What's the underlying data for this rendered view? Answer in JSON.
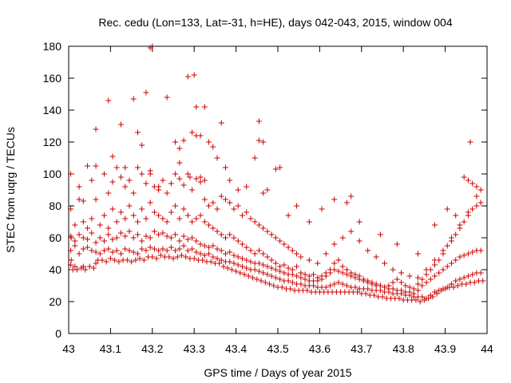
{
  "chart_data": {
    "type": "scatter",
    "title": "Rec. cedu (Lon=133, Lat=-31, h=HE), days 042-043, 2015, window 004",
    "xlabel": "GPS time / Days of year 2015",
    "ylabel": "STEC from uqrg / TECUs",
    "xlim": [
      43,
      44
    ],
    "ylim": [
      0,
      180
    ],
    "xticks": [
      "43",
      "43.1",
      "43.2",
      "43.3",
      "43.4",
      "43.5",
      "43.6",
      "43.7",
      "43.8",
      "43.9",
      "44"
    ],
    "yticks": [
      "0",
      "20",
      "40",
      "60",
      "80",
      "100",
      "120",
      "140",
      "160",
      "180"
    ],
    "grid": false,
    "legend": "none",
    "marker": "plus",
    "marker_color": "#cc0000",
    "series": [
      {
        "x": [
          43.005,
          43.006,
          43.006,
          43.01,
          43.015,
          43.02,
          43.03,
          43.035,
          43.04,
          43.05,
          43.06,
          43.065,
          43.07,
          43.08,
          43.09,
          43.1,
          43.11,
          43.12,
          43.13,
          43.14,
          43.15,
          43.16,
          43.17,
          43.18,
          43.19,
          43.2,
          43.21,
          43.22,
          43.23,
          43.24,
          43.25,
          43.26,
          43.27,
          43.28,
          43.29,
          43.3,
          43.31,
          43.32,
          43.33,
          43.34,
          43.35,
          43.36,
          43.37,
          43.38,
          43.39,
          43.4,
          43.41,
          43.42,
          43.43,
          43.44,
          43.45,
          43.46,
          43.47,
          43.48,
          43.49,
          43.5,
          43.51,
          43.52,
          43.53,
          43.54,
          43.55,
          43.56,
          43.57,
          43.58,
          43.59,
          43.6,
          43.61,
          43.62,
          43.63,
          43.64,
          43.65,
          43.66,
          43.67,
          43.68,
          43.69,
          43.7,
          43.71,
          43.72,
          43.73,
          43.74,
          43.75,
          43.76,
          43.77,
          43.78,
          43.79,
          43.8,
          43.81,
          43.82,
          43.83,
          43.84,
          43.85,
          43.86,
          43.87,
          43.88,
          43.89,
          43.9,
          43.91,
          43.92,
          43.93,
          43.94,
          43.95,
          43.96,
          43.97,
          43.98,
          43.99
        ],
        "y": [
          43,
          46,
          60,
          40,
          42,
          40,
          41,
          42,
          40,
          42,
          41,
          44,
          46,
          46,
          45,
          47,
          46,
          45,
          46,
          46,
          45,
          46,
          47,
          46,
          48,
          48,
          47,
          49,
          48,
          48,
          47,
          48,
          49,
          48,
          47,
          47,
          46,
          46,
          45,
          45,
          44,
          44,
          42,
          41,
          40,
          39,
          38,
          37,
          36,
          35,
          34,
          33,
          32,
          31,
          30,
          29,
          29,
          28,
          28,
          27,
          27,
          27,
          27,
          26,
          26,
          26,
          26,
          26,
          26,
          26,
          26,
          26,
          26,
          26,
          26,
          25,
          25,
          24,
          24,
          23,
          23,
          22,
          22,
          22,
          22,
          21,
          21,
          21,
          21,
          20,
          21,
          22,
          23,
          25,
          27,
          28,
          29,
          29,
          30,
          31,
          31,
          32,
          32,
          33,
          33
        ]
      },
      {
        "x": [
          43.005,
          43.015,
          43.025,
          43.035,
          43.045,
          43.055,
          43.065,
          43.075,
          43.085,
          43.095,
          43.105,
          43.115,
          43.125,
          43.135,
          43.145,
          43.155,
          43.165,
          43.175,
          43.185,
          43.195,
          43.205,
          43.215,
          43.225,
          43.235,
          43.245,
          43.255,
          43.265,
          43.275,
          43.285,
          43.295,
          43.305,
          43.315,
          43.325,
          43.335,
          43.345,
          43.355,
          43.365,
          43.375,
          43.385,
          43.395,
          43.405,
          43.415,
          43.425,
          43.435,
          43.445,
          43.455,
          43.465,
          43.475,
          43.485,
          43.495,
          43.505,
          43.515,
          43.525,
          43.535,
          43.545,
          43.555,
          43.565,
          43.575,
          43.585,
          43.595,
          43.605,
          43.615,
          43.625,
          43.635,
          43.645,
          43.655,
          43.665,
          43.675,
          43.685,
          43.695,
          43.705,
          43.715,
          43.725,
          43.735,
          43.745,
          43.755,
          43.765,
          43.775,
          43.785,
          43.795,
          43.805,
          43.815,
          43.825,
          43.835,
          43.845,
          43.855,
          43.865,
          43.875,
          43.885,
          43.895,
          43.905,
          43.915,
          43.925,
          43.935,
          43.945,
          43.955,
          43.965,
          43.975,
          43.985
        ],
        "y": [
          52,
          55,
          50,
          53,
          54,
          52,
          51,
          50,
          52,
          53,
          51,
          52,
          50,
          53,
          52,
          51,
          50,
          53,
          52,
          54,
          53,
          52,
          53,
          52,
          54,
          52,
          53,
          55,
          52,
          53,
          51,
          50,
          49,
          50,
          48,
          47,
          46,
          45,
          45,
          44,
          43,
          42,
          41,
          40,
          40,
          39,
          38,
          37,
          36,
          35,
          34,
          33,
          33,
          32,
          31,
          31,
          30,
          30,
          30,
          29,
          29,
          29,
          30,
          31,
          32,
          31,
          30,
          29,
          29,
          28,
          28,
          28,
          27,
          27,
          27,
          26,
          26,
          25,
          25,
          25,
          24,
          24,
          23,
          23,
          23,
          22,
          24,
          26,
          27,
          28,
          29,
          31,
          33,
          34,
          35,
          36,
          37,
          38,
          38
        ]
      },
      {
        "x": [
          43.005,
          43.015,
          43.025,
          43.035,
          43.045,
          43.055,
          43.065,
          43.075,
          43.085,
          43.095,
          43.105,
          43.115,
          43.125,
          43.135,
          43.145,
          43.155,
          43.165,
          43.175,
          43.185,
          43.195,
          43.205,
          43.215,
          43.225,
          43.235,
          43.245,
          43.255,
          43.265,
          43.275,
          43.285,
          43.295,
          43.305,
          43.315,
          43.325,
          43.335,
          43.345,
          43.355,
          43.365,
          43.375,
          43.385,
          43.395,
          43.405,
          43.415,
          43.425,
          43.435,
          43.445,
          43.455,
          43.465,
          43.475,
          43.485,
          43.495,
          43.505,
          43.515,
          43.525,
          43.535,
          43.545,
          43.555,
          43.565,
          43.575,
          43.585,
          43.595,
          43.605,
          43.615,
          43.625,
          43.635,
          43.645,
          43.655,
          43.665,
          43.675,
          43.685,
          43.695,
          43.705,
          43.715,
          43.725,
          43.735,
          43.745,
          43.755,
          43.765,
          43.775,
          43.785,
          43.795,
          43.805,
          43.815,
          43.825,
          43.835,
          43.845,
          43.855,
          43.865,
          43.875,
          43.885,
          43.895,
          43.905,
          43.915,
          43.925,
          43.935,
          43.945,
          43.955,
          43.965,
          43.975,
          43.985
        ],
        "y": [
          61,
          58,
          62,
          60,
          59,
          63,
          57,
          60,
          58,
          62,
          59,
          60,
          63,
          61,
          64,
          60,
          62,
          58,
          61,
          60,
          64,
          62,
          63,
          61,
          60,
          62,
          58,
          61,
          59,
          60,
          58,
          56,
          55,
          54,
          55,
          53,
          52,
          50,
          51,
          49,
          48,
          47,
          46,
          45,
          44,
          44,
          43,
          42,
          41,
          40,
          39,
          38,
          37,
          37,
          36,
          35,
          34,
          33,
          33,
          33,
          34,
          36,
          38,
          40,
          39,
          38,
          37,
          36,
          35,
          34,
          33,
          32,
          31,
          30,
          30,
          29,
          28,
          28,
          27,
          27,
          26,
          26,
          25,
          27,
          30,
          32,
          34,
          36,
          38,
          40,
          42,
          44,
          46,
          48,
          49,
          50,
          51,
          52,
          52
        ]
      },
      {
        "x": [
          43.005,
          43.015,
          43.025,
          43.035,
          43.045,
          43.055,
          43.065,
          43.075,
          43.085,
          43.095,
          43.105,
          43.115,
          43.125,
          43.135,
          43.145,
          43.155,
          43.165,
          43.175,
          43.185,
          43.195,
          43.205,
          43.215,
          43.225,
          43.235,
          43.245,
          43.255,
          43.265,
          43.275,
          43.285,
          43.295,
          43.305,
          43.315,
          43.325,
          43.335,
          43.345,
          43.355,
          43.365,
          43.375,
          43.385,
          43.395,
          43.405,
          43.415,
          43.425,
          43.435,
          43.445,
          43.455,
          43.465,
          43.475,
          43.485,
          43.495,
          43.505,
          43.515,
          43.525,
          43.535,
          43.545,
          43.555,
          43.565,
          43.575,
          43.585,
          43.595,
          43.605,
          43.615,
          43.625,
          43.635,
          43.645,
          43.655,
          43.665,
          43.675,
          43.685,
          43.695,
          43.705,
          43.715,
          43.725,
          43.735,
          43.745,
          43.755,
          43.765,
          43.775,
          43.785,
          43.795,
          43.805,
          43.815,
          43.825,
          43.835,
          43.845,
          43.855,
          43.865,
          43.875,
          43.885,
          43.895,
          43.905,
          43.915,
          43.925,
          43.935,
          43.945,
          43.955,
          43.965,
          43.975,
          43.985
        ],
        "y": [
          78,
          68,
          84,
          70,
          66,
          72,
          84,
          68,
          74,
          66,
          78,
          70,
          76,
          72,
          80,
          74,
          70,
          78,
          72,
          82,
          76,
          74,
          72,
          70,
          76,
          80,
          72,
          78,
          74,
          70,
          72,
          74,
          70,
          68,
          66,
          64,
          62,
          60,
          62,
          60,
          58,
          56,
          54,
          52,
          50,
          52,
          50,
          48,
          46,
          44,
          42,
          43,
          41,
          40,
          42,
          38,
          37,
          36,
          37,
          35,
          36,
          38,
          40,
          44,
          46,
          42,
          40,
          38,
          37,
          36,
          34,
          33,
          32,
          31,
          30,
          29,
          30,
          32,
          34,
          32,
          30,
          29,
          28,
          31,
          34,
          37,
          40,
          43,
          46,
          50,
          55,
          58,
          62,
          66,
          70,
          74,
          78,
          80,
          82
        ]
      },
      {
        "x": [
          43.005,
          43.025,
          43.035,
          43.045,
          43.055,
          43.065,
          43.085,
          43.095,
          43.105,
          43.115,
          43.125,
          43.135,
          43.145,
          43.155,
          43.165,
          43.175,
          43.185,
          43.195,
          43.205,
          43.215,
          43.225,
          43.235,
          43.245,
          43.255,
          43.265,
          43.275,
          43.285,
          43.295,
          43.305,
          43.315,
          43.325,
          43.335,
          43.345,
          43.355,
          43.365,
          43.375,
          43.385,
          43.395,
          43.405,
          43.415,
          43.425,
          43.435,
          43.445,
          43.455,
          43.465,
          43.475,
          43.485,
          43.495,
          43.505,
          43.515,
          43.525,
          43.535,
          43.545,
          43.555,
          43.575,
          43.595,
          43.615,
          43.635,
          43.655,
          43.675,
          43.695,
          43.715,
          43.735,
          43.755,
          43.775,
          43.795,
          43.815,
          43.835,
          43.855,
          43.875,
          43.895,
          43.915,
          43.935,
          43.955,
          43.975
        ],
        "y": [
          100,
          92,
          83,
          105,
          96,
          105,
          100,
          88,
          95,
          104,
          98,
          92,
          96,
          88,
          104,
          100,
          94,
          102,
          92,
          90,
          96,
          88,
          94,
          100,
          97,
          93,
          100,
          90,
          97,
          95,
          84,
          80,
          82,
          78,
          86,
          84,
          82,
          78,
          80,
          74,
          76,
          72,
          70,
          68,
          66,
          64,
          62,
          60,
          58,
          56,
          54,
          52,
          50,
          48,
          46,
          44,
          50,
          56,
          60,
          64,
          58,
          52,
          48,
          44,
          40,
          38,
          36,
          35,
          40,
          46,
          52,
          60,
          68,
          76,
          86
        ]
      },
      {
        "x": [
          43.065,
          43.095,
          43.105,
          43.125,
          43.135,
          43.155,
          43.165,
          43.175,
          43.185,
          43.195,
          43.215,
          43.235,
          43.255,
          43.265,
          43.275,
          43.285,
          43.295,
          43.305,
          43.315,
          43.325,
          43.335,
          43.355,
          43.365,
          43.375,
          43.385,
          43.405,
          43.425,
          43.445,
          43.455,
          43.465,
          43.475,
          43.495,
          43.505,
          43.525,
          43.545,
          43.575,
          43.605,
          43.635,
          43.665,
          43.675,
          43.695,
          43.745,
          43.785,
          43.835,
          43.875,
          43.905,
          43.925,
          43.945,
          43.955,
          43.965,
          43.975,
          43.985
        ],
        "y": [
          128,
          146,
          111,
          131,
          104,
          147,
          126,
          118,
          151,
          100,
          92,
          148,
          120,
          107,
          121,
          161,
          126,
          142,
          124,
          142,
          120,
          110,
          132,
          104,
          96,
          90,
          92,
          110,
          133,
          120,
          90,
          103,
          104,
          74,
          80,
          70,
          78,
          84,
          82,
          86,
          70,
          62,
          56,
          50,
          68,
          78,
          74,
          98,
          96,
          94,
          92,
          90
        ]
      },
      {
        "x": [
          43.195,
          43.2,
          43.265,
          43.29,
          43.3,
          43.305,
          43.315,
          43.325,
          43.345,
          43.455,
          43.465,
          43.96
        ],
        "y": [
          179,
          180,
          116,
          98,
          162,
          124,
          98,
          96,
          117,
          121,
          88,
          120
        ]
      }
    ]
  }
}
